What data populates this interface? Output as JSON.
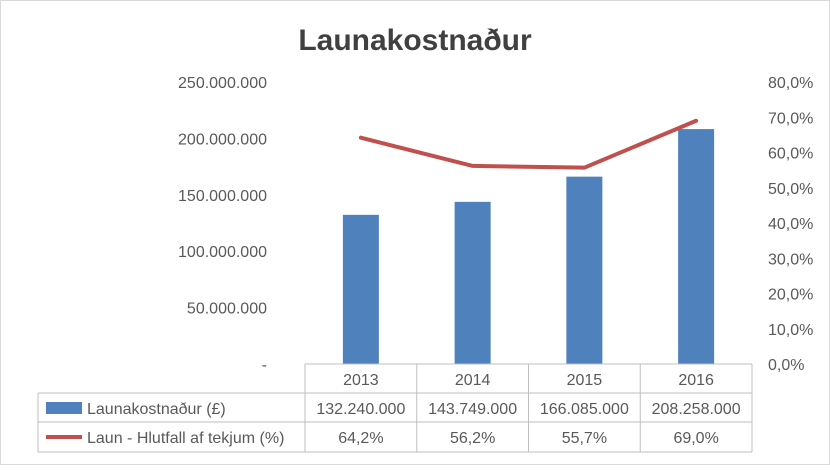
{
  "chart_data": {
    "type": "bar",
    "title": "Launakostnaður",
    "categories": [
      "2013",
      "2014",
      "2015",
      "2016"
    ],
    "series": [
      {
        "name": "Launakostnaður (£)",
        "type": "bar",
        "axis": "left",
        "values": [
          132240000,
          143749000,
          166085000,
          208258000
        ],
        "labels": [
          "132.240.000",
          "143.749.000",
          "166.085.000",
          "208.258.000"
        ],
        "color": "#4f81bd"
      },
      {
        "name": "Laun - Hlutfall af tekjum (%)",
        "type": "line",
        "axis": "right",
        "values": [
          64.2,
          56.2,
          55.7,
          69.0
        ],
        "labels": [
          "64,2%",
          "56,2%",
          "55,7%",
          "69,0%"
        ],
        "color": "#c0504d"
      }
    ],
    "y_left": {
      "ylim": [
        0,
        250000000
      ],
      "ticks": [
        0,
        50000000,
        100000000,
        150000000,
        200000000,
        250000000
      ],
      "tick_labels": [
        "-",
        "50.000.000",
        "100.000.000",
        "150.000.000",
        "200.000.000",
        "250.000.000"
      ]
    },
    "y_right": {
      "ylim": [
        0,
        80
      ],
      "ticks": [
        0,
        10,
        20,
        30,
        40,
        50,
        60,
        70,
        80
      ],
      "tick_labels": [
        "0,0%",
        "10,0%",
        "20,0%",
        "30,0%",
        "40,0%",
        "50,0%",
        "60,0%",
        "70,0%",
        "80,0%"
      ]
    },
    "grid": false,
    "legend": "data-table",
    "colors": {
      "text": "#595959",
      "title": "#404040",
      "table_border": "#bfbfbf",
      "frame": "#d9d9d9"
    }
  }
}
